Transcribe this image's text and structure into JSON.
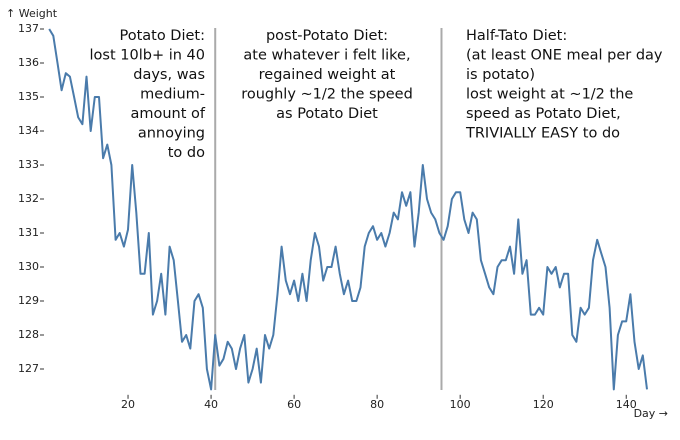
{
  "chart_data": {
    "type": "line",
    "y_label": "↑ Weight",
    "x_label": "Day →",
    "x": [
      1,
      2,
      3,
      4,
      5,
      6,
      7,
      8,
      9,
      10,
      11,
      12,
      13,
      14,
      15,
      16,
      17,
      18,
      19,
      20,
      21,
      22,
      23,
      24,
      25,
      26,
      27,
      28,
      29,
      30,
      31,
      32,
      33,
      34,
      35,
      36,
      37,
      38,
      39,
      40,
      41,
      42,
      43,
      44,
      45,
      46,
      47,
      48,
      49,
      50,
      51,
      52,
      53,
      54,
      55,
      56,
      57,
      58,
      59,
      60,
      61,
      62,
      63,
      64,
      65,
      66,
      67,
      68,
      69,
      70,
      71,
      72,
      73,
      74,
      75,
      76,
      77,
      78,
      79,
      80,
      81,
      82,
      83,
      84,
      85,
      86,
      87,
      88,
      89,
      90,
      91,
      92,
      93,
      94,
      95,
      96,
      97,
      98,
      99,
      100,
      101,
      102,
      103,
      104,
      105,
      106,
      107,
      108,
      109,
      110,
      111,
      112,
      113,
      114,
      115,
      116,
      117,
      118,
      119,
      120,
      121,
      122,
      123,
      124,
      125,
      126,
      127,
      128,
      129,
      130,
      131,
      132,
      133,
      134,
      135,
      136,
      137,
      138,
      139,
      140,
      141,
      142,
      143,
      144,
      145
    ],
    "series": [
      {
        "name": "Weight",
        "color": "#4a7bab",
        "values": [
          137,
          136.8,
          136,
          135.2,
          135.7,
          135.6,
          135,
          134.4,
          134.2,
          135.6,
          134,
          135,
          135,
          133.2,
          133.6,
          133,
          130.8,
          131,
          130.6,
          131.1,
          133,
          131.6,
          129.8,
          129.8,
          131,
          128.6,
          129,
          129.8,
          128.6,
          130.6,
          130.2,
          129,
          127.8,
          128,
          127.6,
          129,
          129.2,
          128.8,
          127,
          126.4,
          128,
          127.1,
          127.3,
          127.8,
          127.6,
          127,
          127.6,
          128,
          126.6,
          127,
          127.6,
          126.6,
          128,
          127.6,
          128,
          129.2,
          130.6,
          129.6,
          129.2,
          129.6,
          129,
          129.8,
          129,
          130.2,
          131,
          130.6,
          129.6,
          130,
          130,
          130.6,
          129.8,
          129.2,
          129.6,
          129,
          129,
          129.4,
          130.6,
          131,
          131.2,
          130.8,
          131,
          130.6,
          131,
          131.6,
          131.4,
          132.2,
          131.8,
          132.2,
          130.6,
          131.6,
          133,
          132,
          131.6,
          131.4,
          131,
          130.8,
          131.2,
          132,
          132.2,
          132.2,
          131.4,
          131,
          131.6,
          131.4,
          130.2,
          129.8,
          129.4,
          129.2,
          130,
          130.2,
          130.2,
          130.6,
          129.8,
          131.4,
          129.8,
          130.2,
          128.6,
          128.6,
          128.8,
          128.6,
          130,
          129.8,
          130,
          129.4,
          129.8,
          129.8,
          128,
          127.8,
          128.8,
          128.6,
          128.8,
          130.2,
          130.8,
          130.4,
          130,
          128.8,
          126.4,
          128,
          128.4,
          128.4,
          129.2,
          127.8,
          127,
          127.4,
          126.4
        ]
      }
    ],
    "xlim": [
      0,
      145
    ],
    "xticks": [
      20,
      40,
      60,
      80,
      100,
      120,
      140
    ],
    "ylim": [
      126.3,
      137.2
    ],
    "yticks": [
      127,
      128,
      129,
      130,
      131,
      132,
      133,
      134,
      135,
      136,
      137
    ],
    "vlines": [
      41,
      95.5
    ],
    "annotations": [
      [
        "Potato Diet:",
        "lost 10lb+ in 40",
        "days, was",
        "medium-",
        "amount of",
        "annoying",
        "to do"
      ],
      [
        "post-Potato Diet:",
        "ate whatever i felt like,",
        "regained weight at",
        "roughly ~1/2 the speed",
        "as Potato Diet"
      ],
      [
        "Half-Tato Diet:",
        "(at least ONE meal per day",
        "is potato)",
        "lost weight at ~1/2 the",
        "speed as Potato Diet,",
        "TRIVIALLY EASY to do"
      ]
    ]
  }
}
